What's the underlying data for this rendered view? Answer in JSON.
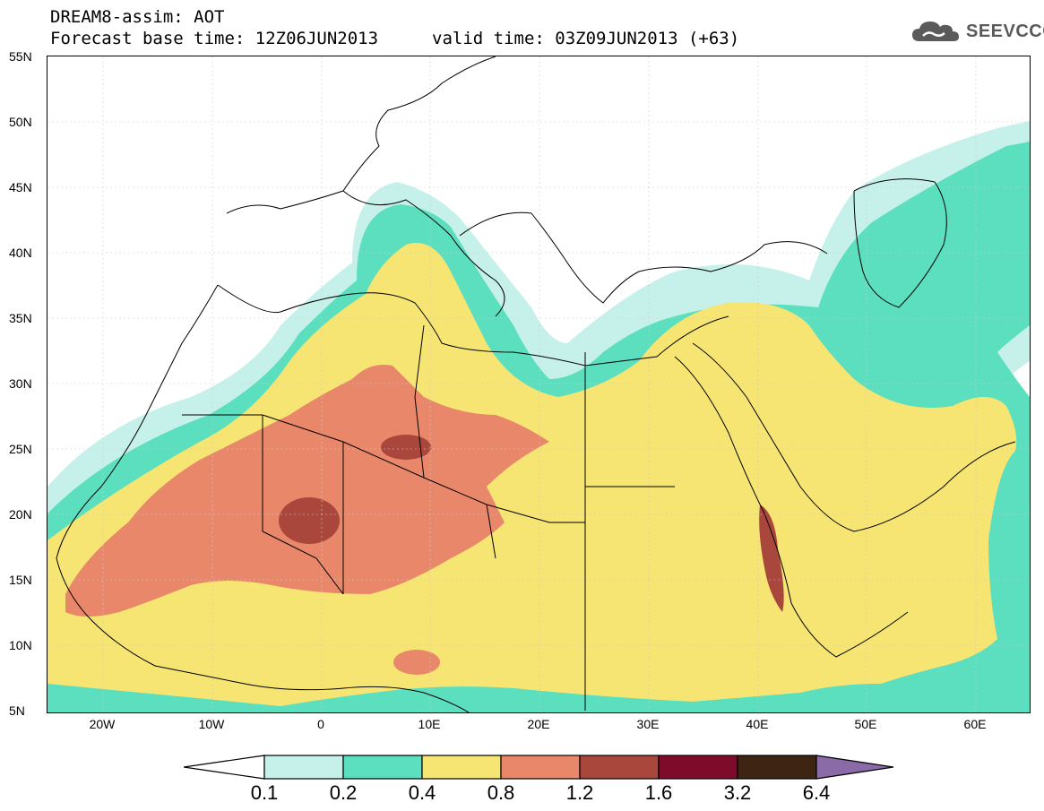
{
  "header": {
    "line1": "DREAM8-assim: AOT",
    "line2": "Forecast base time: 12Z06JUN2013",
    "valid": "valid time: 03Z09JUN2013 (+63)"
  },
  "logo": {
    "text": "SEEVCCC",
    "icon": "cloud-icon",
    "color": "#5a5a5a"
  },
  "map": {
    "lon_range": [
      -25,
      65
    ],
    "lat_range": [
      5,
      55
    ],
    "y_ticks": [
      "55N",
      "50N",
      "45N",
      "40N",
      "35N",
      "30N",
      "25N",
      "20N",
      "15N",
      "10N",
      "5N"
    ],
    "x_ticks": [
      "20W",
      "10W",
      "0",
      "10E",
      "20E",
      "30E",
      "40E",
      "50E",
      "60E"
    ]
  },
  "legend": {
    "labels": [
      "0.1",
      "0.2",
      "0.4",
      "0.8",
      "1.2",
      "1.6",
      "3.2",
      "6.4"
    ],
    "colors": [
      "#ffffff",
      "#c6f1ea",
      "#5bdfbe",
      "#f6e473",
      "#e9876a",
      "#a9473c",
      "#7e0b2a",
      "#3e2413",
      "#8b6aa8"
    ]
  }
}
